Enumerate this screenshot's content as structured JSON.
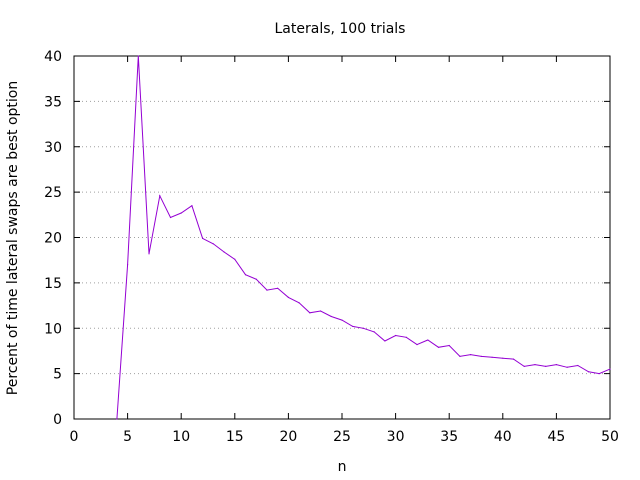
{
  "chart_data": {
    "type": "line",
    "title": "Laterals, 100 trials",
    "xlabel": "n",
    "ylabel": "Percent of time lateral swaps are best option",
    "xlim": [
      0,
      50
    ],
    "ylim": [
      0,
      40
    ],
    "xticks": [
      0,
      5,
      10,
      15,
      20,
      25,
      30,
      35,
      40,
      45,
      50
    ],
    "yticks": [
      0,
      5,
      10,
      15,
      20,
      25,
      30,
      35,
      40
    ],
    "grid": "horizontal dotted",
    "series": [
      {
        "color": "#9400d3",
        "x": [
          4,
          5,
          6,
          7,
          8,
          9,
          10,
          11,
          12,
          13,
          14,
          15,
          16,
          17,
          18,
          19,
          20,
          21,
          22,
          23,
          24,
          25,
          26,
          27,
          28,
          29,
          30,
          31,
          32,
          33,
          34,
          35,
          36,
          37,
          38,
          39,
          40,
          41,
          42,
          43,
          44,
          45,
          46,
          47,
          48,
          49,
          50
        ],
        "y": [
          0,
          17,
          40,
          18.2,
          24.6,
          22.2,
          22.7,
          23.5,
          19.9,
          19.3,
          18.4,
          17.6,
          15.9,
          15.4,
          14.2,
          14.4,
          13.4,
          12.8,
          11.7,
          11.9,
          11.3,
          10.9,
          10.2,
          10.0,
          9.6,
          8.6,
          9.2,
          9.0,
          8.2,
          8.7,
          7.9,
          8.1,
          6.9,
          7.1,
          6.9,
          6.8,
          6.7,
          6.6,
          5.8,
          6.0,
          5.8,
          6.0,
          5.7,
          5.9,
          5.2,
          5.0,
          5.5
        ]
      }
    ]
  }
}
